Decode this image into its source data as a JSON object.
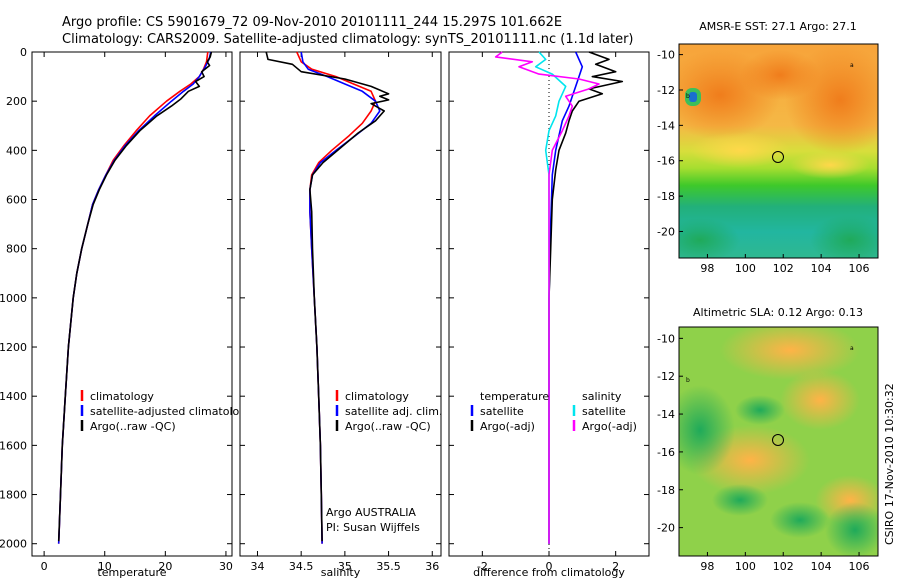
{
  "header": {
    "line1": "Argo profile: CS 5901679_72 09-Nov-2010 20101111_244 15.297S 101.662E",
    "line2": "Climatology: CARS2009. Satellite-adjusted climatology: synTS_20101111.nc (1.1d later)"
  },
  "colors": {
    "red": "#ff0000",
    "blue": "#0000ff",
    "black": "#000000",
    "cyan": "#00e5ee",
    "magenta": "#ff00ff"
  },
  "chart_data": [
    {
      "id": "temperature",
      "type": "line",
      "xlabel": "temperature",
      "xlim": [
        -2,
        31
      ],
      "xticks": [
        "0",
        "10",
        "20",
        "30"
      ],
      "ylim": [
        0,
        2050
      ],
      "yticks": [
        "0",
        "200",
        "400",
        "600",
        "800",
        "1000",
        "1200",
        "1400",
        "1600",
        "1800",
        "2000"
      ],
      "series": [
        {
          "name": "climatology",
          "color": "#ff0000",
          "points": [
            [
              27,
              0
            ],
            [
              26.8,
              40
            ],
            [
              26.3,
              70
            ],
            [
              25.6,
              100
            ],
            [
              24.2,
              130
            ],
            [
              22.4,
              160
            ],
            [
              20.2,
              200
            ],
            [
              17.4,
              260
            ],
            [
              15.2,
              320
            ],
            [
              13.2,
              380
            ],
            [
              11.4,
              440
            ],
            [
              10.2,
              500
            ],
            [
              9.0,
              560
            ],
            [
              8.0,
              620
            ],
            [
              7.2,
              700
            ],
            [
              6.2,
              800
            ],
            [
              5.4,
              900
            ],
            [
              4.8,
              1000
            ],
            [
              4.0,
              1200
            ],
            [
              3.5,
              1400
            ],
            [
              3.0,
              1600
            ],
            [
              2.7,
              1800
            ],
            [
              2.4,
              2000
            ]
          ]
        },
        {
          "name": "satellite-adjusted climatology",
          "color": "#0000ff",
          "points": [
            [
              27.5,
              0
            ],
            [
              27.2,
              30
            ],
            [
              26.6,
              60
            ],
            [
              25.6,
              100
            ],
            [
              24.6,
              130
            ],
            [
              23.0,
              160
            ],
            [
              21.0,
              200
            ],
            [
              18.2,
              260
            ],
            [
              15.6,
              320
            ],
            [
              13.4,
              380
            ],
            [
              11.6,
              440
            ],
            [
              10.2,
              500
            ],
            [
              9.0,
              560
            ],
            [
              8.0,
              620
            ],
            [
              7.2,
              700
            ],
            [
              6.2,
              800
            ],
            [
              5.4,
              900
            ],
            [
              4.8,
              1000
            ],
            [
              4.0,
              1200
            ],
            [
              3.5,
              1400
            ],
            [
              3.0,
              1600
            ],
            [
              2.7,
              1800
            ],
            [
              2.4,
              2000
            ]
          ]
        },
        {
          "name": "Argo(..raw -QC)",
          "color": "#000000",
          "points": [
            [
              27.6,
              0
            ],
            [
              27.4,
              20
            ],
            [
              26.9,
              40
            ],
            [
              27.3,
              55
            ],
            [
              26.0,
              80
            ],
            [
              26.4,
              100
            ],
            [
              25.0,
              120
            ],
            [
              25.6,
              140
            ],
            [
              23.8,
              160
            ],
            [
              22.6,
              190
            ],
            [
              21.0,
              220
            ],
            [
              18.6,
              260
            ],
            [
              15.8,
              320
            ],
            [
              13.6,
              380
            ],
            [
              11.7,
              440
            ],
            [
              10.3,
              500
            ],
            [
              9.1,
              560
            ],
            [
              8.1,
              620
            ],
            [
              7.2,
              700
            ],
            [
              6.2,
              800
            ],
            [
              5.4,
              900
            ],
            [
              4.8,
              1000
            ],
            [
              4.0,
              1200
            ],
            [
              3.5,
              1400
            ],
            [
              3.0,
              1600
            ],
            [
              2.7,
              1800
            ],
            [
              2.4,
              1990
            ]
          ]
        }
      ],
      "legend": [
        {
          "label": "climatology",
          "color": "#ff0000"
        },
        {
          "label": "satellite-adjusted climatology",
          "color": "#0000ff"
        },
        {
          "label": "Argo(..raw -QC)",
          "color": "#000000"
        }
      ]
    },
    {
      "id": "salinity",
      "type": "line",
      "xlabel": "salinity",
      "xlim": [
        33.8,
        36.1
      ],
      "xticks": [
        "34",
        "34.5",
        "35",
        "35.5",
        "36"
      ],
      "ylim": [
        0,
        2050
      ],
      "yticks": [],
      "series": [
        {
          "name": "climatology",
          "color": "#ff0000",
          "points": [
            [
              34.45,
              0
            ],
            [
              34.5,
              40
            ],
            [
              34.62,
              70
            ],
            [
              34.9,
              100
            ],
            [
              35.1,
              130
            ],
            [
              35.3,
              160
            ],
            [
              35.35,
              200
            ],
            [
              35.3,
              240
            ],
            [
              35.2,
              290
            ],
            [
              35.05,
              340
            ],
            [
              34.85,
              400
            ],
            [
              34.7,
              450
            ],
            [
              34.62,
              500
            ],
            [
              34.6,
              560
            ],
            [
              34.6,
              650
            ],
            [
              34.62,
              800
            ],
            [
              34.65,
              1000
            ],
            [
              34.68,
              1200
            ],
            [
              34.7,
              1400
            ],
            [
              34.72,
              1600
            ],
            [
              34.73,
              1800
            ],
            [
              34.74,
              2000
            ]
          ]
        },
        {
          "name": "satellite adj. clim.",
          "color": "#0000ff",
          "points": [
            [
              34.5,
              0
            ],
            [
              34.52,
              40
            ],
            [
              34.58,
              70
            ],
            [
              34.8,
              100
            ],
            [
              35.0,
              130
            ],
            [
              35.2,
              160
            ],
            [
              35.35,
              200
            ],
            [
              35.4,
              240
            ],
            [
              35.3,
              290
            ],
            [
              35.12,
              340
            ],
            [
              34.9,
              400
            ],
            [
              34.72,
              450
            ],
            [
              34.63,
              500
            ],
            [
              34.6,
              560
            ],
            [
              34.6,
              650
            ],
            [
              34.62,
              800
            ],
            [
              34.65,
              1000
            ],
            [
              34.68,
              1200
            ],
            [
              34.7,
              1400
            ],
            [
              34.72,
              1600
            ],
            [
              34.73,
              1800
            ],
            [
              34.74,
              2000
            ]
          ]
        },
        {
          "name": "Argo(..raw -QC)",
          "color": "#000000",
          "points": [
            [
              34.1,
              0
            ],
            [
              34.12,
              30
            ],
            [
              34.4,
              50
            ],
            [
              34.5,
              80
            ],
            [
              35.0,
              110
            ],
            [
              35.3,
              140
            ],
            [
              35.5,
              170
            ],
            [
              35.4,
              180
            ],
            [
              35.5,
              195
            ],
            [
              35.3,
              210
            ],
            [
              35.45,
              240
            ],
            [
              35.35,
              280
            ],
            [
              35.15,
              330
            ],
            [
              34.95,
              390
            ],
            [
              34.75,
              450
            ],
            [
              34.63,
              500
            ],
            [
              34.6,
              560
            ],
            [
              34.62,
              650
            ],
            [
              34.63,
              800
            ],
            [
              34.65,
              1000
            ],
            [
              34.68,
              1200
            ],
            [
              34.7,
              1400
            ],
            [
              34.72,
              1600
            ],
            [
              34.73,
              1800
            ],
            [
              34.74,
              1990
            ]
          ]
        }
      ],
      "legend": [
        {
          "label": "climatology",
          "color": "#ff0000"
        },
        {
          "label": "satellite adj. clim.",
          "color": "#0000ff"
        },
        {
          "label": "Argo(..raw -QC)",
          "color": "#000000"
        }
      ],
      "annotation": [
        "Argo AUSTRALIA",
        "PI: Susan Wijffels"
      ]
    },
    {
      "id": "difference",
      "type": "line",
      "xlabel": "difference from climatology",
      "xlim": [
        -3,
        3
      ],
      "xticks": [
        "-2",
        "0",
        "2"
      ],
      "ylim": [
        0,
        2050
      ],
      "yticks": [],
      "zero_line": true,
      "series": [
        {
          "name": "temperature satellite",
          "color": "#0000ff",
          "points": [
            [
              0.8,
              0
            ],
            [
              0.9,
              30
            ],
            [
              1.0,
              60
            ],
            [
              0.9,
              100
            ],
            [
              0.8,
              140
            ],
            [
              0.7,
              180
            ],
            [
              0.6,
              220
            ],
            [
              0.4,
              280
            ],
            [
              0.3,
              340
            ],
            [
              0.2,
              400
            ],
            [
              0.1,
              500
            ],
            [
              0.05,
              700
            ],
            [
              0,
              1000
            ],
            [
              0,
              1500
            ],
            [
              0,
              2000
            ]
          ]
        },
        {
          "name": "temperature Argo(-adj)",
          "color": "#000000",
          "points": [
            [
              1.2,
              0
            ],
            [
              1.8,
              30
            ],
            [
              1.4,
              50
            ],
            [
              2.0,
              80
            ],
            [
              1.3,
              100
            ],
            [
              2.2,
              120
            ],
            [
              1.2,
              150
            ],
            [
              1.6,
              170
            ],
            [
              0.9,
              200
            ],
            [
              0.7,
              240
            ],
            [
              0.6,
              280
            ],
            [
              0.5,
              330
            ],
            [
              0.3,
              400
            ],
            [
              0.2,
              480
            ],
            [
              0.1,
              600
            ],
            [
              0.05,
              800
            ],
            [
              0,
              1000
            ],
            [
              0,
              1500
            ],
            [
              0,
              2000
            ]
          ]
        },
        {
          "name": "salinity satellite",
          "color": "#00e5ee",
          "points": [
            [
              -0.3,
              0
            ],
            [
              -0.1,
              30
            ],
            [
              -0.4,
              60
            ],
            [
              0.1,
              90
            ],
            [
              0.5,
              140
            ],
            [
              0.3,
              200
            ],
            [
              0.2,
              260
            ],
            [
              0.0,
              320
            ],
            [
              -0.1,
              400
            ],
            [
              0.0,
              500
            ],
            [
              0.0,
              700
            ],
            [
              0.0,
              1000
            ],
            [
              0.0,
              1500
            ],
            [
              0.0,
              2000
            ]
          ]
        },
        {
          "name": "salinity Argo(-adj)",
          "color": "#ff00ff",
          "points": [
            [
              -1.4,
              0
            ],
            [
              -1.6,
              20
            ],
            [
              -0.5,
              40
            ],
            [
              -0.9,
              60
            ],
            [
              -0.3,
              90
            ],
            [
              0.9,
              110
            ],
            [
              1.5,
              130
            ],
            [
              1.2,
              150
            ],
            [
              0.5,
              180
            ],
            [
              0.7,
              220
            ],
            [
              0.6,
              260
            ],
            [
              0.4,
              320
            ],
            [
              0.1,
              400
            ],
            [
              0.0,
              500
            ],
            [
              0.0,
              700
            ],
            [
              0.0,
              1000
            ],
            [
              0.0,
              1500
            ],
            [
              0.0,
              2000
            ]
          ]
        }
      ],
      "legend_headers": [
        "temperature",
        "salinity"
      ],
      "legend_left": [
        {
          "label": "satellite",
          "color": "#0000ff"
        },
        {
          "label": "Argo(-adj)",
          "color": "#000000"
        }
      ],
      "legend_right": [
        {
          "label": "satellite",
          "color": "#00e5ee"
        },
        {
          "label": "Argo(-adj)",
          "color": "#ff00ff"
        }
      ]
    }
  ],
  "maps": [
    {
      "id": "sst",
      "type": "heatmap",
      "title": "AMSR-E SST: 27.1 Argo: 27.1",
      "xticks": [
        "98",
        "100",
        "102",
        "104",
        "106"
      ],
      "yticks": [
        "-10",
        "-12",
        "-14",
        "-16",
        "-18",
        "-20"
      ],
      "xlim": [
        96.5,
        107
      ],
      "ylim": [
        -21.5,
        -9.4
      ],
      "marker": [
        101.66,
        -15.3
      ]
    },
    {
      "id": "sla",
      "type": "heatmap",
      "title": "Altimetric SLA: 0.12 Argo: 0.13",
      "xticks": [
        "98",
        "100",
        "102",
        "104",
        "106"
      ],
      "yticks": [
        "-10",
        "-12",
        "-14",
        "-16",
        "-18",
        "-20"
      ],
      "xlim": [
        96.5,
        107
      ],
      "ylim": [
        -21.5,
        -9.4
      ],
      "marker": [
        101.66,
        -15.3
      ]
    }
  ],
  "footer": {
    "credit": "CSIRO 17-Nov-2010 10:30:32"
  }
}
